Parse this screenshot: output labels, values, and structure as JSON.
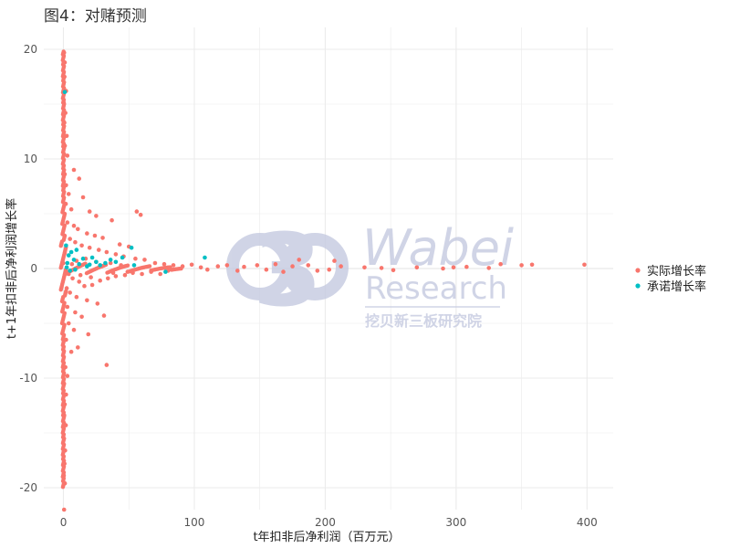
{
  "title": "图4：对赌预测",
  "watermark": {
    "logo_glyph": "3",
    "name": "Wabei",
    "sub": "Research",
    "cn": "挖贝新三板研究院",
    "color": "#c5cae0"
  },
  "colors": {
    "actual": "#f8766d",
    "promised": "#00bfc4",
    "grid": "#ebebeb"
  },
  "chart_data": {
    "type": "scatter",
    "title": "图4：对赌预测",
    "xlabel": "t年扣非后净利润（百万元）",
    "ylabel": "t+1年扣非后净利润增长率",
    "xlim": [
      -15,
      420
    ],
    "ylim": [
      -22,
      22
    ],
    "xticks": [
      0,
      100,
      200,
      300,
      400
    ],
    "yticks": [
      -20,
      -10,
      0,
      10,
      20
    ],
    "grid": true,
    "legend_position": "right",
    "series": [
      {
        "name": "实际增长率",
        "color": "#f8766d",
        "points": [
          [
            0.5,
            19.7
          ],
          [
            1.0,
            18.8
          ],
          [
            0.8,
            17.5
          ],
          [
            2.0,
            16.2
          ],
          [
            0.3,
            15.1
          ],
          [
            1.5,
            14.2
          ],
          [
            0.7,
            13.3
          ],
          [
            2.5,
            12.1
          ],
          [
            1.1,
            11.2
          ],
          [
            3.0,
            10.3
          ],
          [
            8.0,
            9.0
          ],
          [
            1.0,
            8.6
          ],
          [
            12.0,
            8.2
          ],
          [
            2.0,
            7.6
          ],
          [
            4.0,
            6.8
          ],
          [
            15.0,
            6.5
          ],
          [
            1.8,
            5.9
          ],
          [
            6.0,
            5.4
          ],
          [
            20.0,
            5.2
          ],
          [
            25.0,
            4.8
          ],
          [
            37.0,
            4.4
          ],
          [
            56.0,
            5.2
          ],
          [
            59.0,
            4.9
          ],
          [
            3.0,
            4.2
          ],
          [
            8.0,
            3.9
          ],
          [
            11.0,
            3.6
          ],
          [
            18.0,
            3.2
          ],
          [
            24.0,
            3.0
          ],
          [
            30.0,
            2.8
          ],
          [
            43.0,
            2.2
          ],
          [
            50.0,
            2.0
          ],
          [
            5.0,
            2.7
          ],
          [
            9.0,
            2.4
          ],
          [
            14.0,
            2.1
          ],
          [
            20.0,
            1.9
          ],
          [
            27.0,
            1.7
          ],
          [
            33.0,
            1.5
          ],
          [
            40.0,
            1.3
          ],
          [
            46.0,
            1.1
          ],
          [
            55.0,
            0.9
          ],
          [
            62.0,
            0.8
          ],
          [
            70.0,
            0.5
          ],
          [
            77.0,
            0.4
          ],
          [
            84.0,
            0.3
          ],
          [
            91.0,
            0.2
          ],
          [
            98.0,
            0.35
          ],
          [
            105.0,
            0.1
          ],
          [
            110.0,
            -0.1
          ],
          [
            118.0,
            0.2
          ],
          [
            125.0,
            0.3
          ],
          [
            133.0,
            -0.2
          ],
          [
            138.0,
            0.15
          ],
          [
            148.0,
            0.3
          ],
          [
            155.0,
            -0.1
          ],
          [
            162.0,
            0.4
          ],
          [
            168.0,
            -0.3
          ],
          [
            175.0,
            0.2
          ],
          [
            180.0,
            0.8
          ],
          [
            187.0,
            0.3
          ],
          [
            194.0,
            -0.2
          ],
          [
            203.0,
            -0.1
          ],
          [
            207.0,
            0.7
          ],
          [
            212.0,
            0.2
          ],
          [
            230.0,
            0.1
          ],
          [
            243.0,
            0.05
          ],
          [
            252.0,
            -0.15
          ],
          [
            270.0,
            0.1
          ],
          [
            290.0,
            0.0
          ],
          [
            298.0,
            0.1
          ],
          [
            308.0,
            0.15
          ],
          [
            325.0,
            0.05
          ],
          [
            334.0,
            0.4
          ],
          [
            350.0,
            0.3
          ],
          [
            358.0,
            0.35
          ],
          [
            398.0,
            0.35
          ],
          [
            4.0,
            -0.5
          ],
          [
            7.0,
            -0.9
          ],
          [
            12.0,
            -1.2
          ],
          [
            16.0,
            -1.6
          ],
          [
            22.0,
            -1.5
          ],
          [
            28.0,
            -1.1
          ],
          [
            34.0,
            -0.9
          ],
          [
            40.0,
            -0.7
          ],
          [
            47.0,
            -0.6
          ],
          [
            53.0,
            -0.4
          ],
          [
            60.0,
            -0.5
          ],
          [
            67.0,
            -0.3
          ],
          [
            74.0,
            -0.5
          ],
          [
            80.0,
            -0.2
          ],
          [
            5.0,
            -2.2
          ],
          [
            10.0,
            -2.6
          ],
          [
            18.0,
            -2.9
          ],
          [
            26.0,
            -3.2
          ],
          [
            3.0,
            -3.5
          ],
          [
            9.0,
            -4.0
          ],
          [
            14.0,
            -4.4
          ],
          [
            31.0,
            -4.3
          ],
          [
            4.0,
            -5.0
          ],
          [
            8.0,
            -5.6
          ],
          [
            19.0,
            -6.0
          ],
          [
            2.0,
            -6.5
          ],
          [
            11.0,
            -7.2
          ],
          [
            6.0,
            -7.6
          ],
          [
            33.0,
            -8.8
          ],
          [
            1.5,
            -9.0
          ],
          [
            3.0,
            -9.8
          ],
          [
            0.5,
            -10.5
          ],
          [
            2.0,
            -11.5
          ],
          [
            1.0,
            -12.4
          ],
          [
            0.6,
            -13.4
          ],
          [
            1.8,
            -14.3
          ],
          [
            0.4,
            -15.5
          ],
          [
            1.3,
            -16.6
          ],
          [
            0.8,
            -17.8
          ],
          [
            0.3,
            -18.9
          ],
          [
            1.1,
            -19.6
          ],
          [
            0.5,
            -22.0
          ],
          [
            1.0,
            1.4
          ],
          [
            2.5,
            -1.8
          ],
          [
            6.5,
            0.4
          ],
          [
            10.0,
            0.7
          ],
          [
            13.0,
            -0.6
          ],
          [
            17.0,
            0.9
          ],
          [
            21.0,
            -0.8
          ],
          [
            25.0,
            0.6
          ],
          [
            29.0,
            0.2
          ],
          [
            36.0,
            0.5
          ],
          [
            38.0,
            -0.4
          ],
          [
            44.0,
            0.3
          ],
          [
            49.0,
            -0.3
          ]
        ]
      },
      {
        "name": "承诺增长率",
        "color": "#00bfc4",
        "points": [
          [
            1.0,
            16.1
          ],
          [
            2.0,
            2.1
          ],
          [
            3.0,
            0.5
          ],
          [
            4.0,
            1.2
          ],
          [
            6.0,
            1.5
          ],
          [
            8.0,
            0.8
          ],
          [
            10.0,
            1.7
          ],
          [
            12.0,
            0.4
          ],
          [
            15.0,
            0.9
          ],
          [
            18.0,
            0.2
          ],
          [
            22.0,
            1.0
          ],
          [
            25.0,
            0.6
          ],
          [
            28.0,
            0.3
          ],
          [
            32.0,
            0.5
          ],
          [
            36.0,
            0.8
          ],
          [
            40.0,
            0.6
          ],
          [
            45.0,
            1.0
          ],
          [
            52.0,
            1.9
          ],
          [
            54.0,
            0.3
          ],
          [
            78.0,
            -0.3
          ],
          [
            108.0,
            1.0
          ],
          [
            2.5,
            0.1
          ],
          [
            5.0,
            -0.2
          ],
          [
            9.0,
            -0.1
          ],
          [
            20.0,
            0.35
          ]
        ]
      }
    ]
  }
}
